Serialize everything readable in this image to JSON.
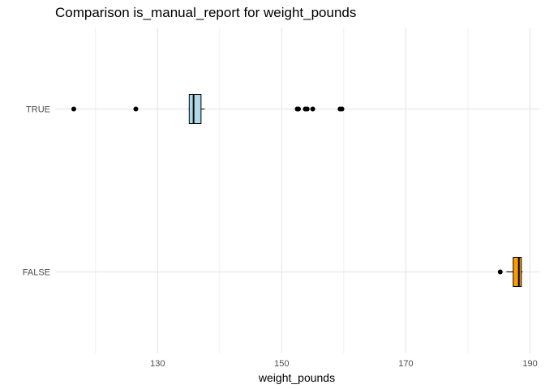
{
  "chart_data": {
    "type": "boxplot",
    "orientation": "horizontal",
    "title": "Comparison is_manual_report for weight_pounds",
    "xlabel": "weight_pounds",
    "ylabel": "",
    "xlim": [
      113.5,
      191.5
    ],
    "x_ticks": [
      130,
      150,
      170,
      190
    ],
    "x_minor_ticks": [
      120,
      140,
      160,
      180
    ],
    "grid": true,
    "legend": "none",
    "categories": [
      "FALSE",
      "TRUE"
    ],
    "series": [
      {
        "category": "TRUE",
        "color": "#ADD8E6",
        "min": 135.0,
        "q1": 135.1,
        "median": 135.8,
        "q3": 137.0,
        "max": 137.6,
        "outliers": [
          116.5,
          126.5,
          152.5,
          152.7,
          153.8,
          154.1,
          155.0,
          159.4,
          159.7
        ]
      },
      {
        "category": "FALSE",
        "color": "#FF9B00",
        "min": 186.2,
        "q1": 187.3,
        "median": 188.2,
        "q3": 188.6,
        "max": 188.8,
        "outliers": [
          185.2
        ]
      }
    ]
  }
}
